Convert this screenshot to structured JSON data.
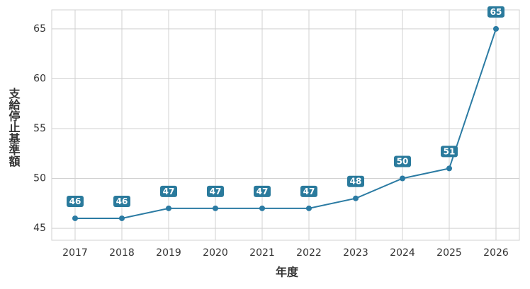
{
  "chart_data": {
    "type": "line",
    "x_label": "年度",
    "y_label": "支給停止基準額",
    "categories": [
      "2017",
      "2018",
      "2019",
      "2020",
      "2021",
      "2022",
      "2023",
      "2024",
      "2025",
      "2026"
    ],
    "values": [
      46,
      46,
      47,
      47,
      47,
      47,
      48,
      50,
      51,
      65
    ],
    "color": "#2b7ba3",
    "label_color": "#2a7a9c",
    "ylim": [
      43.8,
      66.9
    ],
    "yticks": [
      45,
      50,
      55,
      60,
      65
    ],
    "grid": true
  }
}
